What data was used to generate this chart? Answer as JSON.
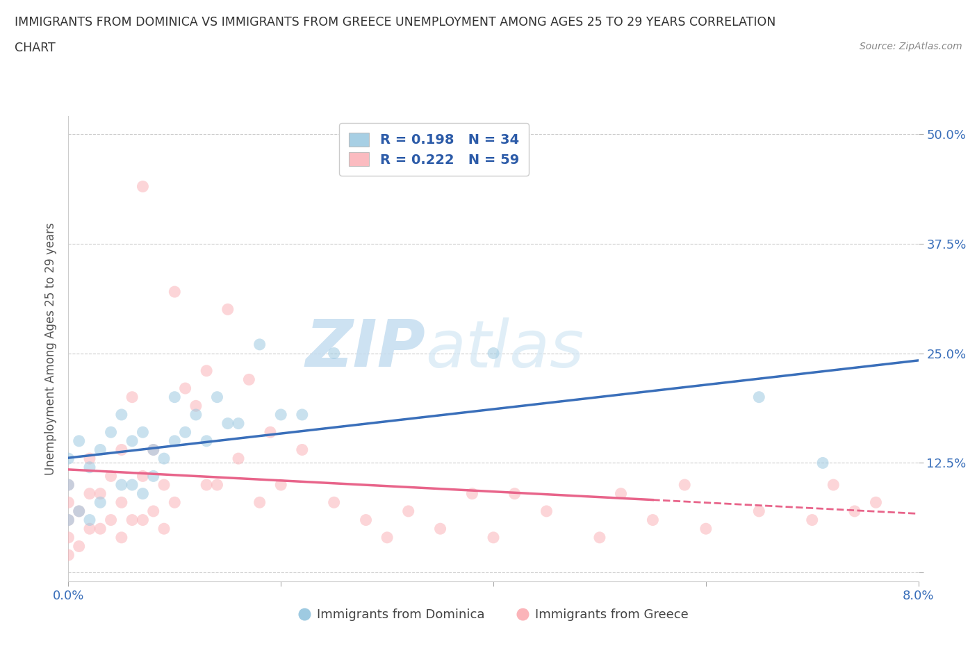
{
  "title_line1": "IMMIGRANTS FROM DOMINICA VS IMMIGRANTS FROM GREECE UNEMPLOYMENT AMONG AGES 25 TO 29 YEARS CORRELATION",
  "title_line2": "CHART",
  "source": "Source: ZipAtlas.com",
  "ylabel": "Unemployment Among Ages 25 to 29 years",
  "xmin": 0.0,
  "xmax": 0.08,
  "ymin": -0.01,
  "ymax": 0.52,
  "ytick_positions": [
    0.0,
    0.125,
    0.25,
    0.375,
    0.5
  ],
  "yticklabels": [
    "",
    "12.5%",
    "25.0%",
    "37.5%",
    "50.0%"
  ],
  "xtick_positions": [
    0.0,
    0.02,
    0.04,
    0.06,
    0.08
  ],
  "xticklabels": [
    "0.0%",
    "",
    "",
    "",
    "8.0%"
  ],
  "dominica_R": 0.198,
  "dominica_N": 34,
  "greece_R": 0.222,
  "greece_N": 59,
  "dominica_scatter_color": "#9ecae1",
  "greece_scatter_color": "#fbb4b9",
  "dominica_line_color": "#3a6fba",
  "greece_line_color": "#e8648a",
  "watermark_zip": "ZIP",
  "watermark_atlas": "atlas",
  "legend_color": "#2c5ba8",
  "dom_legend_label": "Immigrants from Dominica",
  "gre_legend_label": "Immigrants from Greece",
  "dominica_x": [
    0.0,
    0.0,
    0.0,
    0.001,
    0.001,
    0.002,
    0.002,
    0.003,
    0.003,
    0.004,
    0.005,
    0.005,
    0.006,
    0.006,
    0.007,
    0.007,
    0.008,
    0.008,
    0.009,
    0.01,
    0.01,
    0.011,
    0.012,
    0.013,
    0.014,
    0.015,
    0.016,
    0.018,
    0.02,
    0.022,
    0.025,
    0.04,
    0.065,
    0.071
  ],
  "dominica_y": [
    0.06,
    0.1,
    0.13,
    0.07,
    0.15,
    0.06,
    0.12,
    0.08,
    0.14,
    0.16,
    0.1,
    0.18,
    0.1,
    0.15,
    0.09,
    0.16,
    0.11,
    0.14,
    0.13,
    0.15,
    0.2,
    0.16,
    0.18,
    0.15,
    0.2,
    0.17,
    0.17,
    0.26,
    0.18,
    0.18,
    0.25,
    0.25,
    0.2,
    0.125
  ],
  "greece_x": [
    0.0,
    0.0,
    0.0,
    0.0,
    0.0,
    0.001,
    0.001,
    0.002,
    0.002,
    0.002,
    0.003,
    0.003,
    0.004,
    0.004,
    0.005,
    0.005,
    0.005,
    0.006,
    0.006,
    0.007,
    0.007,
    0.007,
    0.008,
    0.008,
    0.009,
    0.009,
    0.01,
    0.01,
    0.011,
    0.012,
    0.013,
    0.013,
    0.014,
    0.015,
    0.016,
    0.017,
    0.018,
    0.019,
    0.02,
    0.022,
    0.025,
    0.028,
    0.03,
    0.032,
    0.035,
    0.038,
    0.04,
    0.042,
    0.045,
    0.05,
    0.052,
    0.055,
    0.058,
    0.06,
    0.065,
    0.07,
    0.072,
    0.074,
    0.076
  ],
  "greece_y": [
    0.02,
    0.04,
    0.06,
    0.08,
    0.1,
    0.03,
    0.07,
    0.05,
    0.09,
    0.13,
    0.05,
    0.09,
    0.06,
    0.11,
    0.04,
    0.08,
    0.14,
    0.06,
    0.2,
    0.06,
    0.11,
    0.44,
    0.07,
    0.14,
    0.05,
    0.1,
    0.08,
    0.32,
    0.21,
    0.19,
    0.1,
    0.23,
    0.1,
    0.3,
    0.13,
    0.22,
    0.08,
    0.16,
    0.1,
    0.14,
    0.08,
    0.06,
    0.04,
    0.07,
    0.05,
    0.09,
    0.04,
    0.09,
    0.07,
    0.04,
    0.09,
    0.06,
    0.1,
    0.05,
    0.07,
    0.06,
    0.1,
    0.07,
    0.08
  ]
}
